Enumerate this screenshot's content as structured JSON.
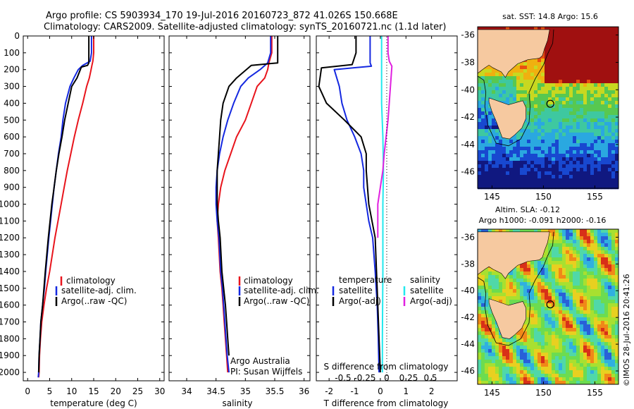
{
  "header": {
    "line1": "Argo profile: CS 5903934_170 19-Jul-2016 20160723_872 41.026S 150.668E",
    "line2": "Climatology: CARS2009. Satellite-adjusted climatology: synTS_20160721.nc (1.1d later)"
  },
  "colors": {
    "climatology": "#e8141c",
    "satellite": "#1428e0",
    "argo": "#000000",
    "sat_salinity": "#22e8ee",
    "argo_salinity": "#e020e0",
    "land": "#f6c9a0"
  },
  "chart_data": [
    {
      "type": "line",
      "id": "temperature",
      "xlabel": "temperature (deg C)",
      "xlim": [
        -1,
        31
      ],
      "xticks": [
        "0",
        "5",
        "10",
        "15",
        "20",
        "25",
        "30"
      ],
      "ylim": [
        0,
        2050
      ],
      "yticks": [
        "0",
        "100",
        "200",
        "300",
        "400",
        "500",
        "600",
        "700",
        "800",
        "900",
        "1000",
        "1100",
        "1200",
        "1300",
        "1400",
        "1500",
        "1600",
        "1700",
        "1800",
        "1900",
        "2000"
      ],
      "legend": [
        "climatology",
        "satellite-adj. clim.",
        "Argo(..raw -QC)"
      ],
      "series": [
        {
          "name": "climatology",
          "x": [
            15.0,
            15.0,
            14.8,
            14.6,
            14.4,
            14.0,
            13.4,
            12.5,
            11.5,
            10.6,
            9.8,
            9.0,
            8.3,
            7.6,
            6.2,
            5.0,
            4.3,
            3.7,
            3.2,
            2.9,
            2.7,
            2.6,
            2.5
          ],
          "y": [
            0,
            100,
            150,
            175,
            200,
            250,
            300,
            400,
            500,
            600,
            700,
            800,
            900,
            1000,
            1200,
            1400,
            1500,
            1600,
            1700,
            1800,
            1900,
            2000,
            2030
          ]
        },
        {
          "name": "satellite-adj. clim.",
          "x": [
            14.5,
            14.5,
            14.2,
            12.5,
            11.5,
            10.5,
            9.6,
            8.6,
            8.0,
            7.6,
            7.0,
            6.5,
            6.0,
            5.6,
            4.8,
            4.1,
            3.8,
            3.4,
            3.0,
            2.8,
            2.6,
            2.5,
            2.4
          ],
          "y": [
            0,
            100,
            150,
            175,
            200,
            250,
            300,
            400,
            500,
            600,
            700,
            800,
            900,
            1000,
            1200,
            1400,
            1500,
            1600,
            1700,
            1800,
            1900,
            2000,
            2030
          ]
        },
        {
          "name": "Argo(..raw -QC)",
          "x": [
            13.9,
            13.9,
            13.9,
            13.6,
            12.2,
            11.2,
            10.0,
            9.2,
            8.4,
            7.8,
            7.1,
            6.5,
            6.0,
            5.5,
            4.7,
            4.0,
            3.7,
            3.4,
            3.0,
            2.8,
            2.6,
            2.5
          ],
          "y": [
            0,
            100,
            160,
            175,
            185,
            250,
            300,
            400,
            500,
            600,
            700,
            800,
            900,
            1000,
            1200,
            1400,
            1500,
            1600,
            1700,
            1800,
            1900,
            2000
          ]
        }
      ]
    },
    {
      "type": "line",
      "id": "salinity",
      "xlabel": "salinity",
      "xlim": [
        33.7,
        36.1
      ],
      "xticks": [
        "34",
        "34.5",
        "35",
        "35.5",
        "36"
      ],
      "ylim": [
        0,
        2050
      ],
      "legend": [
        "climatology",
        "satellite-adj. clim.",
        "Argo(..raw -QC)"
      ],
      "annotation": [
        "Argo Australia",
        "PI: Susan Wijffels"
      ],
      "series": [
        {
          "name": "climatology",
          "x": [
            35.45,
            35.45,
            35.4,
            35.38,
            35.33,
            35.2,
            35.1,
            35.0,
            34.85,
            34.75,
            34.65,
            34.58,
            34.54,
            34.52,
            34.54,
            34.57,
            34.6,
            34.62,
            34.64,
            34.66,
            34.68,
            34.7
          ],
          "y": [
            0,
            100,
            160,
            200,
            250,
            300,
            400,
            500,
            600,
            700,
            800,
            900,
            1000,
            1100,
            1200,
            1400,
            1500,
            1600,
            1700,
            1800,
            1900,
            2000
          ]
        },
        {
          "name": "satellite-adj. clim.",
          "x": [
            35.43,
            35.43,
            35.38,
            35.25,
            35.05,
            34.92,
            34.8,
            34.7,
            34.62,
            34.56,
            34.52,
            34.5,
            34.5,
            34.52,
            34.55,
            34.58,
            34.61,
            34.63,
            34.65,
            34.67,
            34.69,
            34.72
          ],
          "y": [
            0,
            100,
            160,
            200,
            250,
            300,
            400,
            500,
            600,
            700,
            800,
            900,
            1000,
            1100,
            1200,
            1400,
            1500,
            1600,
            1700,
            1800,
            1900,
            2000
          ]
        },
        {
          "name": "Argo(..raw -QC)",
          "x": [
            35.55,
            35.55,
            35.55,
            35.1,
            34.85,
            34.72,
            34.62,
            34.58,
            34.56,
            34.54,
            34.52,
            34.52,
            34.52,
            34.54,
            34.57,
            34.6,
            34.63,
            34.66,
            34.68,
            34.7,
            34.72
          ],
          "y": [
            0,
            100,
            160,
            175,
            250,
            300,
            400,
            500,
            600,
            700,
            800,
            900,
            1000,
            1100,
            1200,
            1400,
            1500,
            1600,
            1700,
            1800,
            1900
          ]
        }
      ]
    },
    {
      "type": "line",
      "id": "difference",
      "xlabel": "T difference from climatology",
      "xlabel2": "S difference from climatology",
      "xlim": [
        -2.5,
        3.0
      ],
      "xticks": [
        "-2",
        "-1",
        "0",
        "1",
        "2"
      ],
      "xticks_s": [
        "-0.5",
        "-0.25",
        "0",
        "0.25",
        "0.5"
      ],
      "ylim": [
        0,
        2050
      ],
      "legend_left_title": "temperature",
      "legend_right_title": "salinity",
      "legend": [
        "satellite",
        "Argo(-adj)",
        "satellite",
        "Argo(-adj)"
      ],
      "series": [
        {
          "name": "satellite",
          "x": [
            -0.4,
            -0.4,
            -0.4,
            -0.35,
            -1.8,
            -1.6,
            -1.5,
            -1.3,
            -1.0,
            -0.75,
            -0.65,
            -0.65,
            -0.55,
            -0.45,
            -0.3,
            -0.2,
            -0.12,
            -0.08,
            -0.05
          ],
          "y": [
            0,
            100,
            160,
            180,
            200,
            300,
            400,
            500,
            600,
            700,
            800,
            900,
            1000,
            1100,
            1200,
            1400,
            1600,
            1800,
            2000
          ]
        },
        {
          "name": "Argo(-adj)",
          "x": [
            -0.95,
            -0.95,
            -1.1,
            -2.3,
            -2.4,
            -2.1,
            -1.4,
            -0.75,
            -0.55,
            -0.55,
            -0.5,
            -0.45,
            -0.2,
            -0.1,
            0.0
          ],
          "y": [
            0,
            100,
            170,
            190,
            300,
            400,
            500,
            600,
            700,
            800,
            900,
            1000,
            1200,
            1600,
            2000
          ]
        },
        {
          "name": "satellite",
          "x": [
            0.05,
            0.05,
            0.05,
            0.05,
            0.1,
            0.12,
            0.1,
            0.1,
            0.08,
            0.08
          ],
          "y": [
            0,
            100,
            200,
            400,
            600,
            800,
            1000,
            1400,
            1800,
            2000
          ]
        },
        {
          "name": "Argo(-adj)",
          "x": [
            0.3,
            0.3,
            0.35,
            0.45,
            0.3,
            0.15,
            0.1,
            0.0,
            -0.1,
            -0.1
          ],
          "y": [
            0,
            100,
            150,
            180,
            500,
            700,
            800,
            900,
            1000,
            1200
          ]
        }
      ]
    }
  ],
  "maps": [
    {
      "id": "sst",
      "title": "sat. SST: 14.8 Argo: 15.6",
      "xticks": [
        "145",
        "150",
        "155"
      ],
      "yticks": [
        "-36",
        "-38",
        "-40",
        "-42",
        "-44",
        "-46"
      ],
      "argo_position": {
        "lon": 150.668,
        "lat": -41.026
      }
    },
    {
      "id": "sla",
      "title1": "Altim. SLA: -0.12",
      "title2": "Argo h1000: -0.091 h2000: -0.16",
      "xticks": [
        "145",
        "150",
        "155"
      ],
      "yticks": [
        "-36",
        "-38",
        "-40",
        "-42",
        "-44",
        "-46"
      ],
      "argo_position": {
        "lon": 150.668,
        "lat": -41.026
      }
    }
  ],
  "footer": {
    "imos": "©IMOS 28-Jul-2016 20:41:26"
  }
}
